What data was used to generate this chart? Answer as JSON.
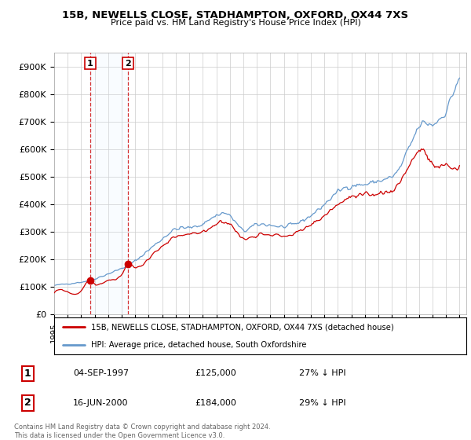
{
  "title1": "15B, NEWELLS CLOSE, STADHAMPTON, OXFORD, OX44 7XS",
  "title2": "Price paid vs. HM Land Registry's House Price Index (HPI)",
  "ylim": [
    0,
    950000
  ],
  "xlim_start": 1995.0,
  "xlim_end": 2025.5,
  "yticks": [
    0,
    100000,
    200000,
    300000,
    400000,
    500000,
    600000,
    700000,
    800000,
    900000
  ],
  "ytick_labels": [
    "£0",
    "£100K",
    "£200K",
    "£300K",
    "£400K",
    "£500K",
    "£600K",
    "£700K",
    "£800K",
    "£900K"
  ],
  "sale1_x": 1997.67,
  "sale1_y": 125000,
  "sale2_x": 2000.46,
  "sale2_y": 184000,
  "sale1_date": "04-SEP-1997",
  "sale1_price": "£125,000",
  "sale1_hpi": "27% ↓ HPI",
  "sale2_date": "16-JUN-2000",
  "sale2_price": "£184,000",
  "sale2_hpi": "29% ↓ HPI",
  "legend_line1": "15B, NEWELLS CLOSE, STADHAMPTON, OXFORD, OX44 7XS (detached house)",
  "legend_line2": "HPI: Average price, detached house, South Oxfordshire",
  "footnote": "Contains HM Land Registry data © Crown copyright and database right 2024.\nThis data is licensed under the Open Government Licence v3.0.",
  "line_color_red": "#cc0000",
  "line_color_blue": "#6699cc",
  "marker_color": "#cc0000",
  "dashed_color": "#cc0000",
  "box_color": "#cc0000",
  "shade_color": "#ddeeff",
  "bg_color": "#ffffff",
  "grid_color": "#cccccc"
}
